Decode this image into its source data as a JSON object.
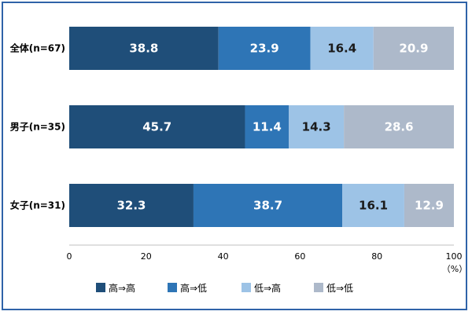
{
  "chart_data": {
    "type": "bar",
    "orientation": "horizontal",
    "stacked": true,
    "percent": true,
    "categories": [
      "全体(n=67)",
      "男子(n=35)",
      "女子(n=31)"
    ],
    "series": [
      {
        "name": "高⇒高",
        "color": "#1f4e79",
        "values": [
          38.8,
          45.7,
          32.3
        ]
      },
      {
        "name": "高⇒低",
        "color": "#2e75b6",
        "values": [
          23.9,
          11.4,
          38.7
        ]
      },
      {
        "name": "低⇒高",
        "color": "#9dc3e6",
        "values": [
          16.4,
          14.3,
          16.1
        ]
      },
      {
        "name": "低⇒低",
        "color": "#adb9ca",
        "values": [
          20.9,
          28.6,
          12.9
        ]
      }
    ],
    "xlim": [
      0,
      100
    ],
    "xticks": [
      "0",
      "20",
      "40",
      "60",
      "80",
      "100"
    ],
    "unit": "（%）",
    "legend_position": "bottom",
    "grid": false
  }
}
